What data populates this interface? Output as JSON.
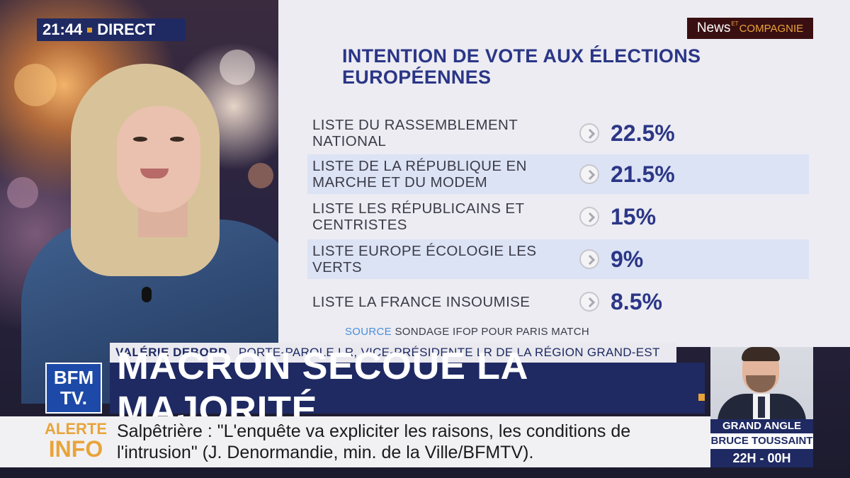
{
  "clock": {
    "time": "21:44",
    "status": "DIRECT"
  },
  "show_logo": {
    "part1": "News",
    "part2": "ET",
    "part3": "COMPAGNIE"
  },
  "panel": {
    "title": "INTENTION DE VOTE AUX ÉLECTIONS EUROPÉENNES",
    "rows": [
      {
        "label": "LISTE DU RASSEMBLEMENT NATIONAL",
        "value": "22.5%"
      },
      {
        "label": "LISTE DE LA RÉPUBLIQUE EN MARCHE ET DU MODEM",
        "value": "21.5%"
      },
      {
        "label": "LISTE LES RÉPUBLICAINS ET CENTRISTES",
        "value": "15%"
      },
      {
        "label": "LISTE EUROPE ÉCOLOGIE LES VERTS",
        "value": "9%"
      },
      {
        "label": "LISTE LA FRANCE INSOUMISE",
        "value": "8.5%"
      }
    ],
    "source_label": "SOURCE",
    "source_text": "SONDAGE IFOP POUR PARIS MATCH"
  },
  "guest": {
    "name": "VALÉRIE DEBORD",
    "title": "PORTE-PAROLE LR, VICE-PRÉSIDENTE LR DE LA RÉGION GRAND-EST"
  },
  "channel_logo": {
    "line1": "BFM",
    "line2": "TV."
  },
  "headline": "MACRON SECOUE LA MAJORITÉ",
  "ticker": {
    "label_line1": "ALERTE",
    "label_line2": "INFO",
    "text": "Salpêtrière : \"L'enquête va expliciter les raisons, les conditions de l'intrusion\" (J. Denormandie, min. de la Ville/BFMTV)."
  },
  "promo": {
    "title": "GRAND ANGLE",
    "host": "BRUCE TOUSSAINT",
    "time": "22H - 00H"
  },
  "colors": {
    "navy": "#1f2a63",
    "accent": "#e8a43a",
    "panel_text": "#2b3687"
  }
}
